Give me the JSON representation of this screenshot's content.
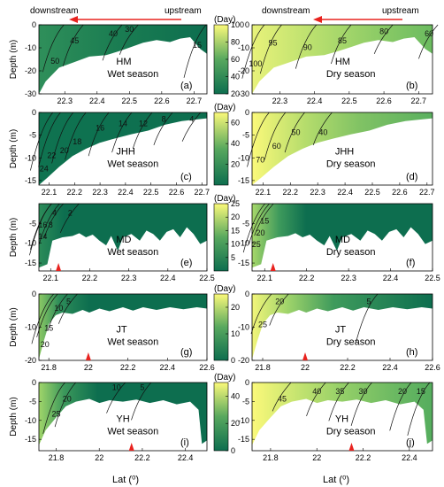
{
  "header": {
    "left_label": "downstream",
    "right_label": "upstream",
    "arrow_color": "#e8231f"
  },
  "colors": {
    "low": "#0d6e4f",
    "mid": "#58a85e",
    "high": "#fbf97a",
    "outline": "#000000",
    "marker": "#e8231f"
  },
  "x_axis_label": "Lat (⁰)",
  "y_axis_label": "Depth (m)",
  "colorbar_unit": "(Day)",
  "chart_data": [
    {
      "type": "heatmap",
      "id": "a",
      "station": "HM",
      "season": "Wet season",
      "panel_label": "(a)",
      "ylim": [
        -30,
        0
      ],
      "yticks": [
        0,
        -10,
        -20,
        -30
      ],
      "xlim": [
        22.22,
        22.74
      ],
      "xticks": [
        22.3,
        22.4,
        22.5,
        22.6,
        22.7
      ],
      "colorbar": {
        "min": 20,
        "max": 100,
        "ticks": [
          20,
          40,
          60,
          80,
          100
        ]
      },
      "contour_labels": [
        {
          "text": "30",
          "x": 22.5,
          "y": -3
        },
        {
          "text": "40",
          "x": 22.45,
          "y": -5
        },
        {
          "text": "45",
          "x": 22.33,
          "y": -8
        },
        {
          "text": "50",
          "x": 22.27,
          "y": -17
        },
        {
          "text": "15",
          "x": 22.71,
          "y": -10
        }
      ]
    },
    {
      "type": "heatmap",
      "id": "b",
      "station": "HM",
      "season": "Dry season",
      "panel_label": "(b)",
      "ylim": [
        -30,
        0
      ],
      "yticks": [
        0,
        -10,
        -20,
        -30
      ],
      "xlim": [
        22.22,
        22.74
      ],
      "xticks": [
        22.3,
        22.4,
        22.5,
        22.6,
        22.7
      ],
      "contour_labels": [
        {
          "text": "80",
          "x": 22.6,
          "y": -4
        },
        {
          "text": "60",
          "x": 22.73,
          "y": -5
        },
        {
          "text": "85",
          "x": 22.48,
          "y": -8
        },
        {
          "text": "90",
          "x": 22.38,
          "y": -11
        },
        {
          "text": "95",
          "x": 22.28,
          "y": -9
        },
        {
          "text": "100",
          "x": 22.23,
          "y": -18
        }
      ]
    },
    {
      "type": "heatmap",
      "id": "c",
      "station": "JHH",
      "season": "Wet season",
      "panel_label": "(c)",
      "ylim": [
        -16,
        0
      ],
      "yticks": [
        0,
        -5,
        -10,
        -15
      ],
      "xlim": [
        22.06,
        22.72
      ],
      "xticks": [
        22.1,
        22.2,
        22.3,
        22.4,
        22.5,
        22.6,
        22.7
      ],
      "colorbar": {
        "min": 0,
        "max": 70,
        "ticks": [
          20,
          40,
          60
        ]
      },
      "contour_labels": [
        {
          "text": "4",
          "x": 22.66,
          "y": -2
        },
        {
          "text": "8",
          "x": 22.55,
          "y": -2
        },
        {
          "text": "12",
          "x": 22.47,
          "y": -3
        },
        {
          "text": "14",
          "x": 22.39,
          "y": -3
        },
        {
          "text": "16",
          "x": 22.3,
          "y": -4
        },
        {
          "text": "18",
          "x": 22.21,
          "y": -7
        },
        {
          "text": "20",
          "x": 22.16,
          "y": -9
        },
        {
          "text": "22",
          "x": 22.11,
          "y": -10
        },
        {
          "text": "24",
          "x": 22.08,
          "y": -13
        }
      ]
    },
    {
      "type": "heatmap",
      "id": "d",
      "station": "JHH",
      "season": "Dry season",
      "panel_label": "(d)",
      "ylim": [
        -16,
        0
      ],
      "yticks": [
        0,
        -5,
        -10,
        -15
      ],
      "xlim": [
        22.06,
        22.72
      ],
      "xticks": [
        22.1,
        22.2,
        22.3,
        22.4,
        22.5,
        22.6,
        22.7
      ],
      "contour_labels": [
        {
          "text": "40",
          "x": 22.32,
          "y": -5
        },
        {
          "text": "50",
          "x": 22.22,
          "y": -5
        },
        {
          "text": "60",
          "x": 22.15,
          "y": -8
        },
        {
          "text": "70",
          "x": 22.09,
          "y": -11
        }
      ]
    },
    {
      "type": "heatmap",
      "id": "e",
      "station": "MD",
      "season": "Wet season",
      "panel_label": "(e)",
      "ylim": [
        -17,
        0
      ],
      "yticks": [
        -5,
        -10,
        -15
      ],
      "xlim": [
        22.07,
        22.5
      ],
      "xticks": [
        22.1,
        22.2,
        22.3,
        22.4,
        22.5
      ],
      "colorbar": {
        "min": 0,
        "max": 25,
        "ticks": [
          5,
          10,
          15,
          20,
          25
        ]
      },
      "marker_x": 22.12,
      "contour_labels": [
        {
          "text": "2",
          "x": 22.15,
          "y": -3
        },
        {
          "text": "4",
          "x": 22.11,
          "y": -3
        },
        {
          "text": "8",
          "x": 22.1,
          "y": -6
        },
        {
          "text": "14",
          "x": 22.08,
          "y": -9
        },
        {
          "text": "16",
          "x": 22.08,
          "y": -6
        }
      ]
    },
    {
      "type": "heatmap",
      "id": "f",
      "station": "MD",
      "season": "Dry season",
      "panel_label": "(f)",
      "ylim": [
        -17,
        0
      ],
      "yticks": [
        -5,
        -10,
        -15
      ],
      "xlim": [
        22.07,
        22.5
      ],
      "xticks": [
        22.1,
        22.2,
        22.3,
        22.4,
        22.5
      ],
      "marker_x": 22.12,
      "contour_labels": [
        {
          "text": "15",
          "x": 22.1,
          "y": -5
        },
        {
          "text": "20",
          "x": 22.09,
          "y": -8
        },
        {
          "text": "25",
          "x": 22.08,
          "y": -11
        }
      ]
    },
    {
      "type": "heatmap",
      "id": "g",
      "station": "JT",
      "season": "Wet season",
      "panel_label": "(g)",
      "ylim": [
        -20,
        0
      ],
      "yticks": [
        0,
        -10,
        -20
      ],
      "xlim": [
        21.75,
        22.6
      ],
      "xticks": [
        21.8,
        22.0,
        22.2,
        22.4,
        22.6
      ],
      "colorbar": {
        "min": 0,
        "max": 25,
        "ticks": [
          0,
          10,
          20
        ]
      },
      "marker_x": 22.0,
      "contour_labels": [
        {
          "text": "5",
          "x": 21.9,
          "y": -3
        },
        {
          "text": "10",
          "x": 21.85,
          "y": -5
        },
        {
          "text": "15",
          "x": 21.8,
          "y": -11
        },
        {
          "text": "20",
          "x": 21.78,
          "y": -16
        }
      ]
    },
    {
      "type": "heatmap",
      "id": "h",
      "station": "JT",
      "season": "Dry season",
      "panel_label": "(h)",
      "ylim": [
        -20,
        0
      ],
      "yticks": [
        0,
        -10,
        -20
      ],
      "xlim": [
        21.75,
        22.6
      ],
      "xticks": [
        21.8,
        22.0,
        22.2,
        22.4,
        22.6
      ],
      "marker_x": 22.0,
      "contour_labels": [
        {
          "text": "20",
          "x": 21.88,
          "y": -3
        },
        {
          "text": "25",
          "x": 21.8,
          "y": -10
        },
        {
          "text": "5",
          "x": 22.3,
          "y": -3
        }
      ]
    },
    {
      "type": "heatmap",
      "id": "i",
      "station": "YH",
      "season": "Wet season",
      "panel_label": "(i)",
      "ylim": [
        -18,
        0
      ],
      "yticks": [
        0,
        -5,
        -10,
        -15
      ],
      "xlim": [
        21.72,
        22.5
      ],
      "xticks": [
        21.8,
        22.0,
        22.2,
        22.4
      ],
      "colorbar": {
        "min": 0,
        "max": 50,
        "ticks": [
          0,
          20,
          40
        ]
      },
      "marker_x": 22.15,
      "contour_labels": [
        {
          "text": "10",
          "x": 22.08,
          "y": -2
        },
        {
          "text": "5",
          "x": 22.2,
          "y": -2
        },
        {
          "text": "20",
          "x": 21.85,
          "y": -5
        },
        {
          "text": "25",
          "x": 21.8,
          "y": -9
        }
      ]
    },
    {
      "type": "heatmap",
      "id": "j",
      "station": "YH",
      "season": "Dry season",
      "panel_label": "(j)",
      "ylim": [
        -18,
        0
      ],
      "yticks": [
        0,
        -5,
        -10,
        -15
      ],
      "xlim": [
        21.72,
        22.5
      ],
      "xticks": [
        21.8,
        22.0,
        22.2,
        22.4
      ],
      "marker_x": 22.15,
      "contour_labels": [
        {
          "text": "45",
          "x": 21.85,
          "y": -5
        },
        {
          "text": "40",
          "x": 22.0,
          "y": -3
        },
        {
          "text": "35",
          "x": 22.1,
          "y": -3
        },
        {
          "text": "30",
          "x": 22.2,
          "y": -3
        },
        {
          "text": "20",
          "x": 22.37,
          "y": -3
        },
        {
          "text": "15",
          "x": 22.45,
          "y": -3
        }
      ]
    }
  ]
}
